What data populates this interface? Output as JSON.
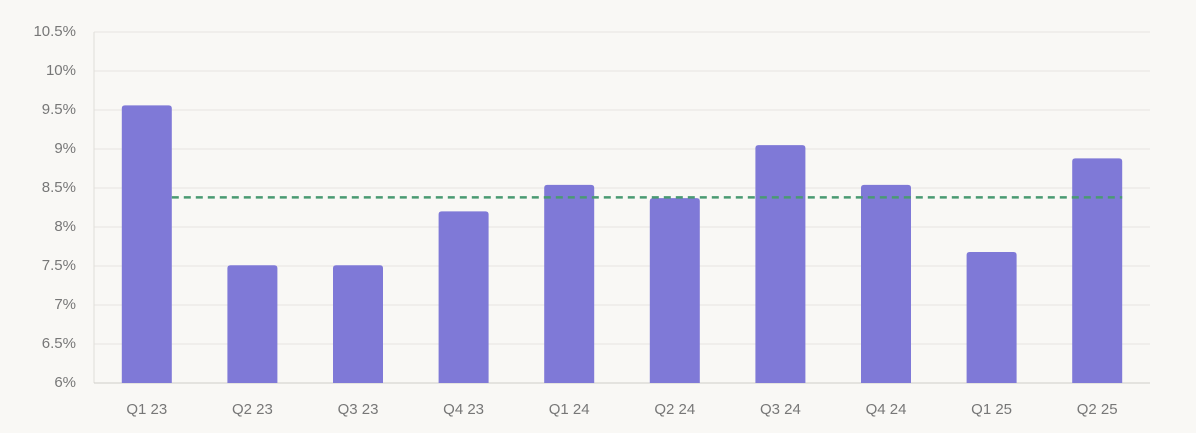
{
  "chart_data": {
    "type": "bar",
    "categories": [
      "Q1 23",
      "Q2 23",
      "Q3 23",
      "Q4 23",
      "Q1 24",
      "Q2 24",
      "Q3 24",
      "Q4 24",
      "Q1 25",
      "Q2 25"
    ],
    "values": [
      9.56,
      7.51,
      7.51,
      8.2,
      8.54,
      8.37,
      9.05,
      8.54,
      7.68,
      8.88
    ],
    "color": "#7f79d7",
    "ylim": [
      6,
      10.5
    ],
    "yticks": [
      {
        "value": 6,
        "label": "6%"
      },
      {
        "value": 6.5,
        "label": "6.5%"
      },
      {
        "value": 7,
        "label": "7%"
      },
      {
        "value": 7.5,
        "label": "7.5%"
      },
      {
        "value": 8,
        "label": "8%"
      },
      {
        "value": 8.5,
        "label": "8.5%"
      },
      {
        "value": 9,
        "label": "9%"
      },
      {
        "value": 9.5,
        "label": "9.5%"
      },
      {
        "value": 10,
        "label": "10%"
      },
      {
        "value": 10.5,
        "label": "10.5%"
      }
    ],
    "grid": true,
    "reference_line": {
      "value": 8.38,
      "color": "#4a9a72"
    }
  }
}
